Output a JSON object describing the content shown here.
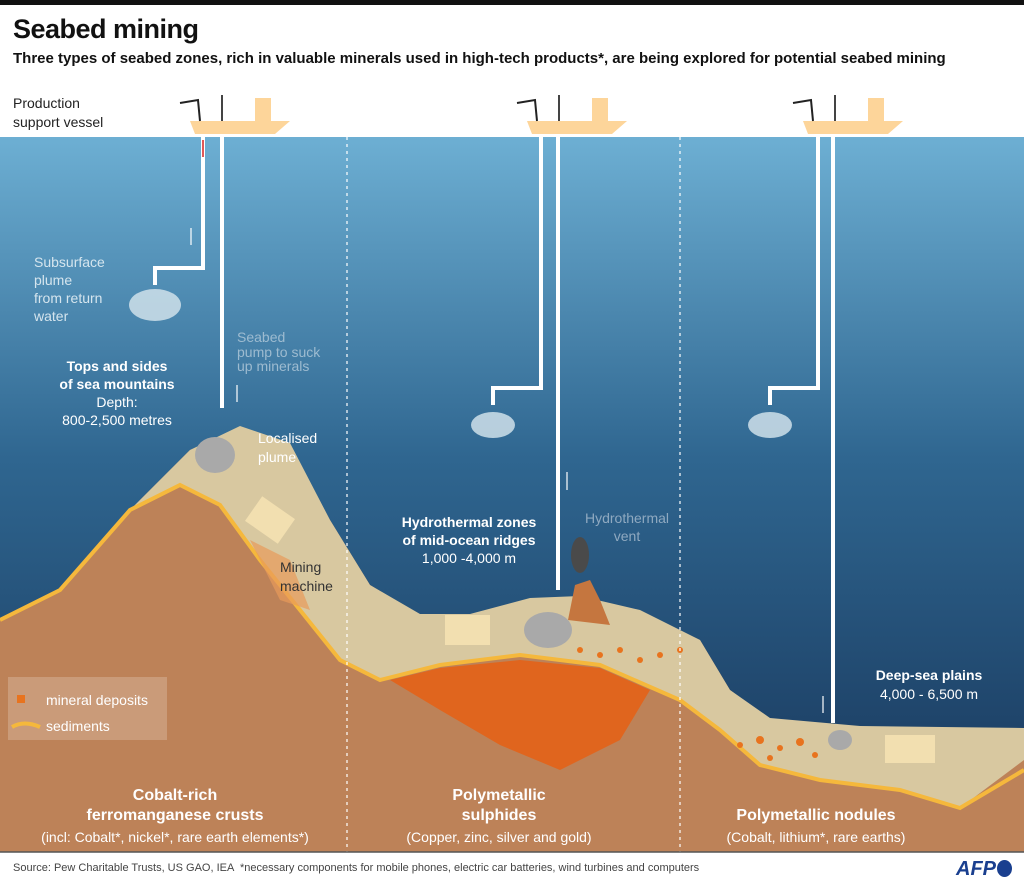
{
  "title": "Seabed mining",
  "subtitle": "Three types of seabed zones, rich in valuable minerals used in high-tech products*, are being explored for potential seabed mining",
  "labels": {
    "vessel": [
      "Production",
      "support vessel"
    ],
    "plume_return": [
      "Subsurface",
      "plume",
      "from return",
      "water"
    ],
    "pump": [
      "Seabed",
      "pump to suck",
      "up minerals"
    ],
    "localised_plume": [
      "Localised",
      "plume"
    ],
    "mining_machine": [
      "Mining",
      "machine"
    ],
    "hydrothermal_vent": [
      "Hydrothermal",
      "vent"
    ]
  },
  "zones": [
    {
      "heading": [
        "Tops and sides",
        "of sea mountains"
      ],
      "depth": [
        "Depth:",
        "800-2,500 metres"
      ],
      "name": [
        "Cobalt-rich",
        "ferromanganese crusts"
      ],
      "minerals": "(incl: Cobalt*,  nickel*, rare earth elements*)"
    },
    {
      "heading": [
        "Hydrothermal zones",
        "of mid-ocean ridges"
      ],
      "depth": [
        "1,000 -4,000 m"
      ],
      "name": [
        "Polymetallic",
        "sulphides"
      ],
      "minerals": "(Copper, zinc, silver and gold)"
    },
    {
      "heading": [
        "Deep-sea plains"
      ],
      "depth": [
        "4,000 - 6,500 m"
      ],
      "name": [
        "Polymetallic nodules"
      ],
      "minerals": "(Cobalt, lithium*, rare earths)"
    }
  ],
  "legend": [
    {
      "label": "mineral deposits",
      "color": "#e8731e"
    },
    {
      "label": "sediments",
      "color": "#f5b83c"
    }
  ],
  "colors": {
    "ocean_top": "#6dafd3",
    "ocean_bottom": "#1a3a60",
    "rock": "#bd8258",
    "sediment_surface": "#d8c8a0",
    "deposit": "#e8731e"
  },
  "footer": {
    "source": "Source: Pew Charitable Trusts, US GAO, IEA",
    "note": "*necessary components for mobile phones, electric car batteries, wind turbines and computers",
    "logo": "AFP"
  }
}
